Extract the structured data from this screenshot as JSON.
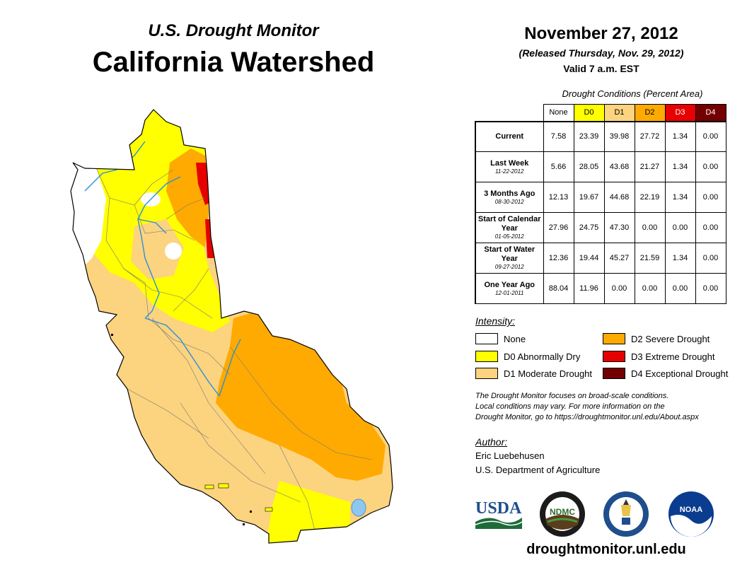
{
  "header": {
    "supertitle": "U.S. Drought Monitor",
    "title": "California Watershed",
    "date": "November 27, 2012",
    "released": "(Released Thursday, Nov. 29, 2012)",
    "valid": "Valid 7 a.m. EST"
  },
  "table": {
    "caption": "Drought Conditions (Percent Area)",
    "columns": [
      {
        "label": "None",
        "color": "#ffffff",
        "text_color": "#000000"
      },
      {
        "label": "D0",
        "color": "#ffff00",
        "text_color": "#000000"
      },
      {
        "label": "D1",
        "color": "#fcd37f",
        "text_color": "#000000"
      },
      {
        "label": "D2",
        "color": "#ffaa00",
        "text_color": "#000000"
      },
      {
        "label": "D3",
        "color": "#e60000",
        "text_color": "#ffffff"
      },
      {
        "label": "D4",
        "color": "#730000",
        "text_color": "#ffffff"
      }
    ],
    "rows": [
      {
        "label": "Current",
        "sub": "",
        "values": [
          "7.58",
          "23.39",
          "39.98",
          "27.72",
          "1.34",
          "0.00"
        ]
      },
      {
        "label": "Last Week",
        "sub": "11-22-2012",
        "values": [
          "5.66",
          "28.05",
          "43.68",
          "21.27",
          "1.34",
          "0.00"
        ]
      },
      {
        "label": "3 Months Ago",
        "sub": "08-30-2012",
        "values": [
          "12.13",
          "19.67",
          "44.68",
          "22.19",
          "1.34",
          "0.00"
        ]
      },
      {
        "label": "Start of Calendar Year",
        "sub": "01-05-2012",
        "values": [
          "27.96",
          "24.75",
          "47.30",
          "0.00",
          "0.00",
          "0.00"
        ]
      },
      {
        "label": "Start of Water Year",
        "sub": "09-27-2012",
        "values": [
          "12.36",
          "19.44",
          "45.27",
          "21.59",
          "1.34",
          "0.00"
        ]
      },
      {
        "label": "One Year Ago",
        "sub": "12-01-2011",
        "values": [
          "88.04",
          "11.96",
          "0.00",
          "0.00",
          "0.00",
          "0.00"
        ]
      }
    ]
  },
  "legend": {
    "title": "Intensity:",
    "items": [
      {
        "label": "None",
        "color": "#ffffff"
      },
      {
        "label": "D0 Abnormally Dry",
        "color": "#ffff00"
      },
      {
        "label": "D1 Moderate Drought",
        "color": "#fcd37f"
      },
      {
        "label": "D2 Severe Drought",
        "color": "#ffaa00"
      },
      {
        "label": "D3 Extreme Drought",
        "color": "#e60000"
      },
      {
        "label": "D4 Exceptional Drought",
        "color": "#730000"
      }
    ]
  },
  "note": {
    "line1": "The Drought Monitor focuses on broad-scale conditions.",
    "line2": "Local conditions may vary. For more information on the",
    "line3": "Drought Monitor, go to https://droughtmonitor.unl.edu/About.aspx"
  },
  "author": {
    "title": "Author:",
    "name": "Eric Luebehusen",
    "org": "U.S. Department of Agriculture"
  },
  "logos": {
    "usda": "USDA",
    "ndmc": "NDMC",
    "noaa": "NOAA"
  },
  "footer": {
    "url": "droughtmonitor.unl.edu"
  }
}
